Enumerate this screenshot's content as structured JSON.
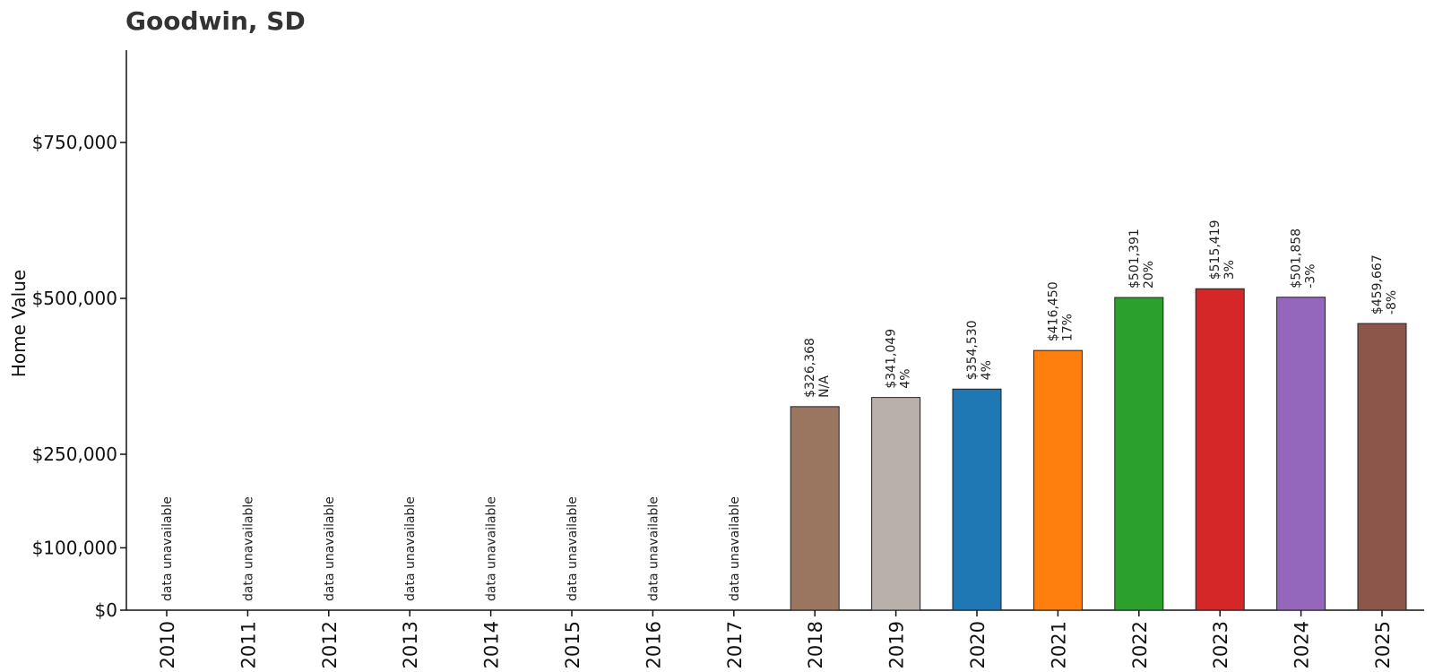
{
  "chart_data": {
    "type": "bar",
    "title": "Goodwin, SD",
    "xlabel": "",
    "ylabel": "Home Value",
    "ylim": [
      0,
      900000
    ],
    "yticks": [
      {
        "value": 0,
        "label": "$0"
      },
      {
        "value": 100000,
        "label": "$100,000"
      },
      {
        "value": 250000,
        "label": "$250,000"
      },
      {
        "value": 500000,
        "label": "$500,000"
      },
      {
        "value": 750000,
        "label": "$750,000"
      }
    ],
    "categories": [
      "2010",
      "2011",
      "2012",
      "2013",
      "2014",
      "2015",
      "2016",
      "2017",
      "2018",
      "2019",
      "2020",
      "2021",
      "2022",
      "2023",
      "2024",
      "2025"
    ],
    "values": [
      null,
      null,
      null,
      null,
      null,
      null,
      null,
      null,
      326368,
      341049,
      354530,
      416450,
      501391,
      515419,
      501858,
      459667
    ],
    "value_labels": [
      "",
      "",
      "",
      "",
      "",
      "",
      "",
      "",
      "$326,368",
      "$341,049",
      "$354,530",
      "$416,450",
      "$501,391",
      "$515,419",
      "$501,858",
      "$459,667"
    ],
    "change_labels": [
      "",
      "",
      "",
      "",
      "",
      "",
      "",
      "",
      "N/A",
      "4%",
      "4%",
      "17%",
      "20%",
      "3%",
      "-3%",
      "-8%"
    ],
    "unavailable_label": "data unavailable",
    "colors": [
      "",
      "",
      "",
      "",
      "",
      "",
      "",
      "",
      "#9a7560",
      "#bab0ab",
      "#1f77b4",
      "#ff7f0e",
      "#2ca02c",
      "#d62728",
      "#9467bd",
      "#8c564b"
    ],
    "grid": false,
    "legend": "none"
  }
}
